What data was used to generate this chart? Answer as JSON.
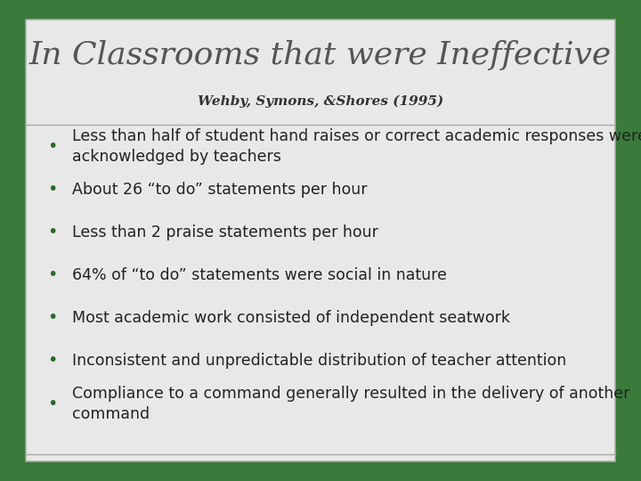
{
  "title": "In Classrooms that were Ineffective",
  "subtitle": "Wehby, Symons, &Shores (1995)",
  "bullets": [
    "Less than half of student hand raises or correct academic responses were\nacknowledged by teachers",
    "About 26 “to do” statements per hour",
    "Less than 2 praise statements per hour",
    "64% of “to do” statements were social in nature",
    "Most academic work consisted of independent seatwork",
    "Inconsistent and unpredictable distribution of teacher attention",
    "Compliance to a command generally resulted in the delivery of another\ncommand"
  ],
  "bg_outer": "#3a7a3a",
  "bg_inner": "#e8e8e8",
  "title_color": "#555555",
  "subtitle_color": "#333333",
  "bullet_color": "#2a6b2a",
  "text_color": "#222222",
  "divider_color": "#aaaaaa",
  "title_fontsize": 26,
  "subtitle_fontsize": 11,
  "bullet_fontsize": 12.5
}
